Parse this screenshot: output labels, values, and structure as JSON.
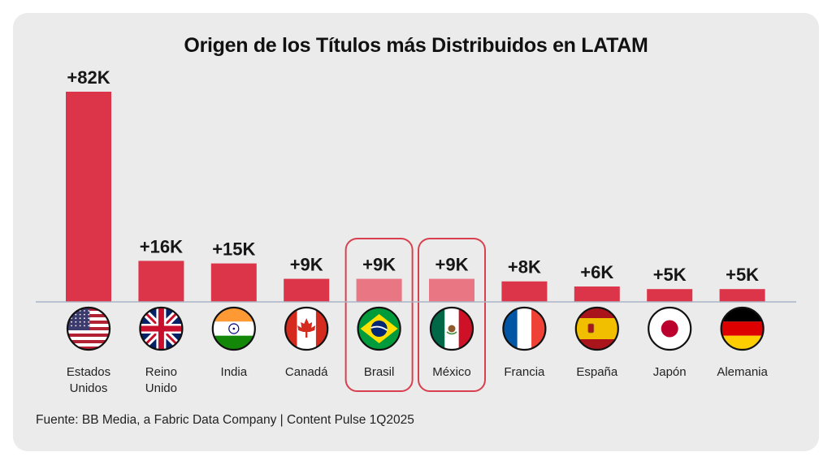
{
  "chart_data": {
    "type": "bar",
    "title": "Origen de los Títulos más Distribuidos en LATAM",
    "categories": [
      {
        "label": [
          "Estados",
          "Unidos"
        ],
        "value": 82,
        "value_label": "+82K",
        "flag": "us-flag-icon",
        "highlighted": false
      },
      {
        "label": [
          "Reino",
          "Unido"
        ],
        "value": 16,
        "value_label": "+16K",
        "flag": "uk-flag-icon",
        "highlighted": false
      },
      {
        "label": [
          "India"
        ],
        "value": 15,
        "value_label": "+15K",
        "flag": "india-flag-icon",
        "highlighted": false
      },
      {
        "label": [
          "Canadá"
        ],
        "value": 9,
        "value_label": "+9K",
        "flag": "canada-flag-icon",
        "highlighted": false
      },
      {
        "label": [
          "Brasil"
        ],
        "value": 9,
        "value_label": "+9K",
        "flag": "brazil-flag-icon",
        "highlighted": true
      },
      {
        "label": [
          "México"
        ],
        "value": 9,
        "value_label": "+9K",
        "flag": "mexico-flag-icon",
        "highlighted": true
      },
      {
        "label": [
          "Francia"
        ],
        "value": 8,
        "value_label": "+8K",
        "flag": "france-flag-icon",
        "highlighted": false
      },
      {
        "label": [
          "España"
        ],
        "value": 6,
        "value_label": "+6K",
        "flag": "spain-flag-icon",
        "highlighted": false
      },
      {
        "label": [
          "Japón"
        ],
        "value": 5,
        "value_label": "+5K",
        "flag": "japan-flag-icon",
        "highlighted": false
      },
      {
        "label": [
          "Alemania"
        ],
        "value": 5,
        "value_label": "+5K",
        "flag": "germany-flag-icon",
        "highlighted": false
      }
    ],
    "units": "thousands of titles",
    "colors": {
      "bar": "#dc3448",
      "bar_highlight": "#e87683",
      "highlight_border": "#d9404f",
      "baseline": "#a9b3c6"
    },
    "legend": "none",
    "grid": false
  },
  "footer": {
    "source": "Fuente: BB Media, a Fabric Data Company | Content Pulse 1Q2025"
  }
}
